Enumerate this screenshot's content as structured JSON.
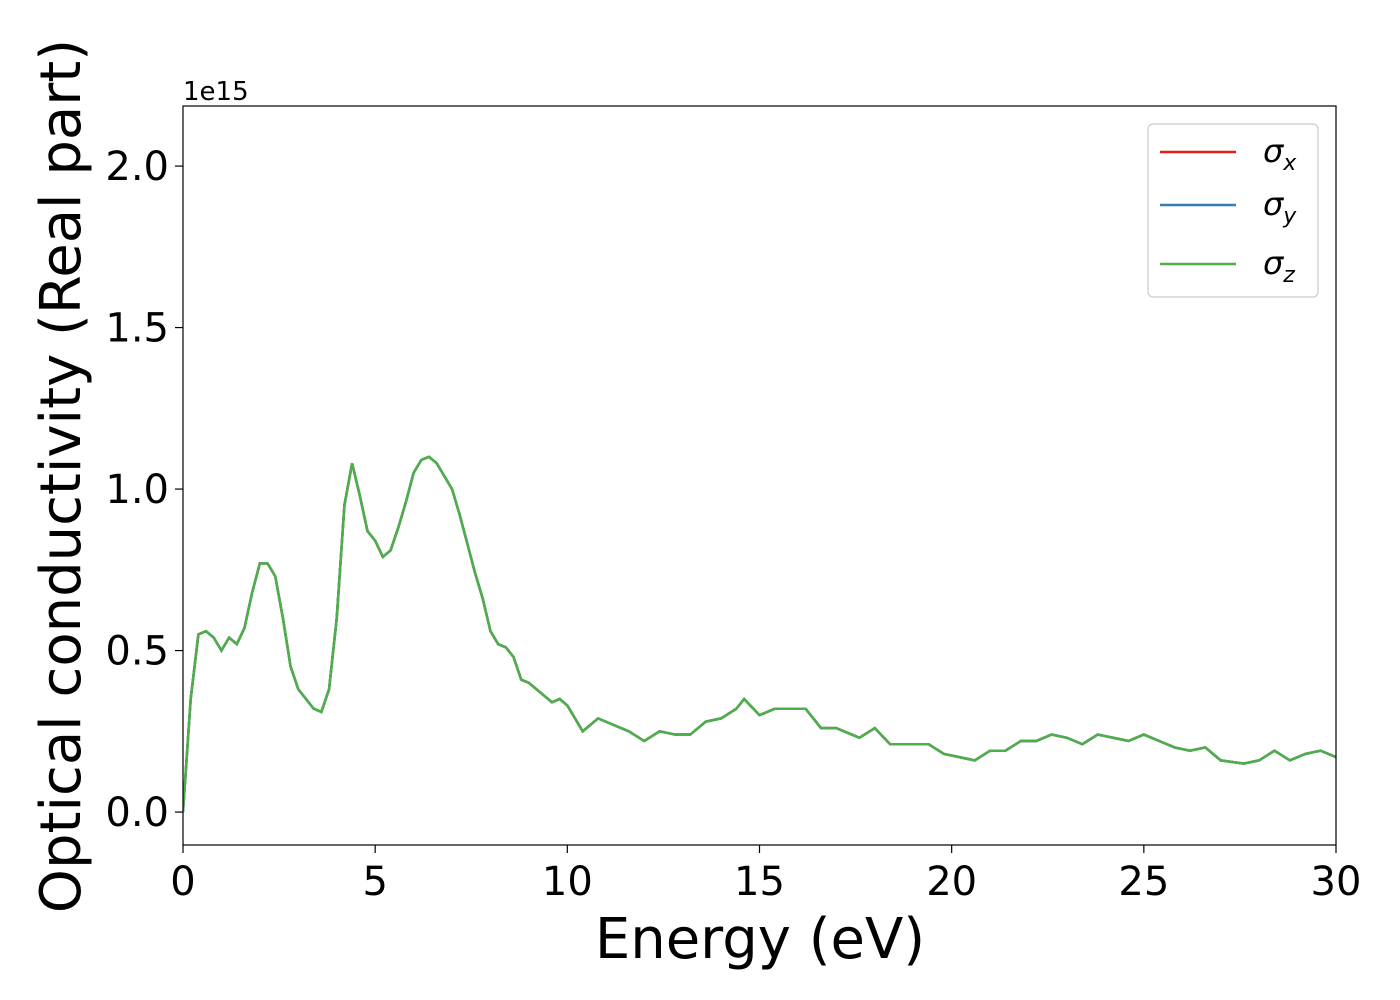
{
  "chart_data": {
    "type": "line",
    "x_label": "Energy (eV)",
    "y_label": "Optical conductivity (Real part)",
    "y_offset": "1e15",
    "x": [
      0,
      0.2,
      0.4,
      0.6,
      0.8,
      1.0,
      1.2,
      1.4,
      1.6,
      1.8,
      2.0,
      2.2,
      2.4,
      2.6,
      2.8,
      3.0,
      3.2,
      3.4,
      3.6,
      3.8,
      4.0,
      4.2,
      4.4,
      4.6,
      4.8,
      5.0,
      5.2,
      5.4,
      5.6,
      5.8,
      6.0,
      6.2,
      6.4,
      6.6,
      6.8,
      7.0,
      7.2,
      7.4,
      7.6,
      7.8,
      8.0,
      8.2,
      8.4,
      8.6,
      8.8,
      9.0,
      9.4,
      9.6,
      9.8,
      10.0,
      10.4,
      10.8,
      11.2,
      11.6,
      12.0,
      12.4,
      12.8,
      13.2,
      13.6,
      14.0,
      14.4,
      14.6,
      15.0,
      15.4,
      16.0,
      16.2,
      16.6,
      17.0,
      17.4,
      17.6,
      18.0,
      18.4,
      19.0,
      19.4,
      19.8,
      20.2,
      20.6,
      21.0,
      21.4,
      21.8,
      22.2,
      22.6,
      23.0,
      23.4,
      23.8,
      24.2,
      24.6,
      25.0,
      25.4,
      25.8,
      26.2,
      26.6,
      27.0,
      27.6,
      28.0,
      28.4,
      28.8,
      29.2,
      29.6,
      30.0
    ],
    "series": [
      {
        "name": "σx",
        "color": "#e41a1c",
        "values": [
          0.0,
          0.35,
          0.55,
          0.56,
          0.54,
          0.5,
          0.54,
          0.52,
          0.57,
          0.68,
          0.77,
          0.77,
          0.73,
          0.6,
          0.45,
          0.38,
          0.35,
          0.32,
          0.31,
          0.38,
          0.6,
          0.95,
          1.08,
          0.98,
          0.87,
          0.84,
          0.79,
          0.81,
          0.88,
          0.96,
          1.05,
          1.09,
          1.1,
          1.08,
          1.04,
          1.0,
          0.92,
          0.83,
          0.74,
          0.66,
          0.56,
          0.52,
          0.51,
          0.48,
          0.41,
          0.4,
          0.36,
          0.34,
          0.35,
          0.33,
          0.25,
          0.29,
          0.27,
          0.25,
          0.22,
          0.25,
          0.24,
          0.24,
          0.28,
          0.29,
          0.32,
          0.35,
          0.3,
          0.32,
          0.32,
          0.32,
          0.26,
          0.26,
          0.24,
          0.23,
          0.26,
          0.21,
          0.21,
          0.21,
          0.18,
          0.17,
          0.16,
          0.19,
          0.19,
          0.22,
          0.22,
          0.24,
          0.23,
          0.21,
          0.24,
          0.23,
          0.22,
          0.24,
          0.22,
          0.2,
          0.19,
          0.2,
          0.16,
          0.15,
          0.16,
          0.19,
          0.16,
          0.18,
          0.19,
          0.17
        ]
      },
      {
        "name": "σy",
        "color": "#377eb8",
        "values": [
          0.0,
          0.35,
          0.55,
          0.56,
          0.54,
          0.5,
          0.54,
          0.52,
          0.57,
          0.68,
          0.77,
          0.77,
          0.73,
          0.6,
          0.45,
          0.38,
          0.35,
          0.32,
          0.31,
          0.38,
          0.6,
          0.95,
          1.08,
          0.98,
          0.87,
          0.84,
          0.79,
          0.81,
          0.88,
          0.96,
          1.05,
          1.09,
          1.1,
          1.08,
          1.04,
          1.0,
          0.92,
          0.83,
          0.74,
          0.66,
          0.56,
          0.52,
          0.51,
          0.48,
          0.41,
          0.4,
          0.36,
          0.34,
          0.35,
          0.33,
          0.25,
          0.29,
          0.27,
          0.25,
          0.22,
          0.25,
          0.24,
          0.24,
          0.28,
          0.29,
          0.32,
          0.35,
          0.3,
          0.32,
          0.32,
          0.32,
          0.26,
          0.26,
          0.24,
          0.23,
          0.26,
          0.21,
          0.21,
          0.21,
          0.18,
          0.17,
          0.16,
          0.19,
          0.19,
          0.22,
          0.22,
          0.24,
          0.23,
          0.21,
          0.24,
          0.23,
          0.22,
          0.24,
          0.22,
          0.2,
          0.19,
          0.2,
          0.16,
          0.15,
          0.16,
          0.19,
          0.16,
          0.18,
          0.19,
          0.17
        ]
      },
      {
        "name": "σz",
        "color": "#4daf4a",
        "values": [
          0.0,
          0.35,
          0.55,
          0.56,
          0.54,
          0.5,
          0.54,
          0.52,
          0.57,
          0.68,
          0.77,
          0.77,
          0.73,
          0.6,
          0.45,
          0.38,
          0.35,
          0.32,
          0.31,
          0.38,
          0.6,
          0.95,
          1.08,
          0.98,
          0.87,
          0.84,
          0.79,
          0.81,
          0.88,
          0.96,
          1.05,
          1.09,
          1.1,
          1.08,
          1.04,
          1.0,
          0.92,
          0.83,
          0.74,
          0.66,
          0.56,
          0.52,
          0.51,
          0.48,
          0.41,
          0.4,
          0.36,
          0.34,
          0.35,
          0.33,
          0.25,
          0.29,
          0.27,
          0.25,
          0.22,
          0.25,
          0.24,
          0.24,
          0.28,
          0.29,
          0.32,
          0.35,
          0.3,
          0.32,
          0.32,
          0.32,
          0.26,
          0.26,
          0.24,
          0.23,
          0.26,
          0.21,
          0.21,
          0.21,
          0.18,
          0.17,
          0.16,
          0.19,
          0.19,
          0.22,
          0.22,
          0.24,
          0.23,
          0.21,
          0.24,
          0.23,
          0.22,
          0.24,
          0.22,
          0.2,
          0.19,
          0.2,
          0.16,
          0.15,
          0.16,
          0.19,
          0.16,
          0.18,
          0.19,
          0.17
        ]
      }
    ],
    "xlim": [
      0,
      30
    ],
    "xticks": [
      0,
      5,
      10,
      15,
      20,
      25,
      30
    ],
    "ylim": [
      -0.102,
      2.186
    ],
    "yticks": [
      {
        "value": 0,
        "label": "0.0"
      },
      0.5,
      {
        "value": 1,
        "label": "1.0"
      },
      1.5,
      {
        "value": 2,
        "label": "2.0"
      }
    ],
    "legend": "upper right",
    "grid": false
  }
}
